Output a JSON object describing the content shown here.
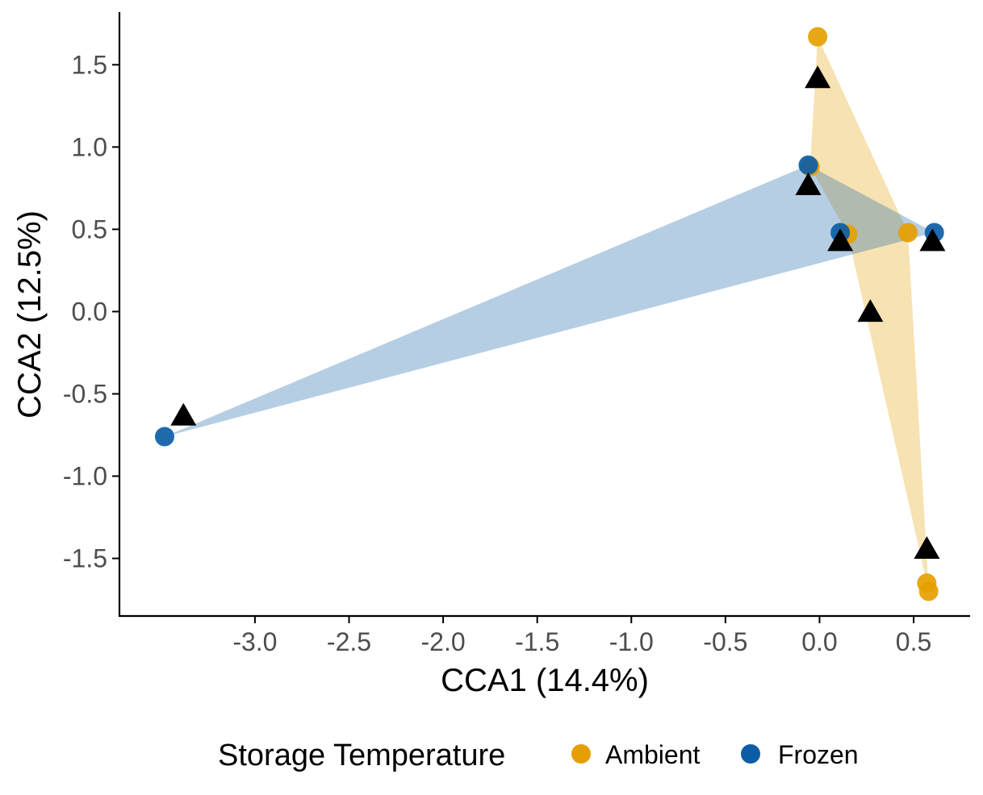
{
  "chart_data": {
    "type": "scatter",
    "xlabel": "CCA1 (14.4%)",
    "ylabel": "CCA2 (12.5%)",
    "xlim": [
      -3.72,
      0.8
    ],
    "ylim": [
      -1.85,
      1.82
    ],
    "x_ticks": [
      -3.0,
      -2.5,
      -2.0,
      -1.5,
      -1.0,
      -0.5,
      0.0,
      0.5
    ],
    "x_tick_labels": [
      "-3.0",
      "-2.5",
      "-2.0",
      "-1.5",
      "-1.0",
      "-0.5",
      "0.0",
      "0.5"
    ],
    "y_ticks": [
      -1.5,
      -1.0,
      -0.5,
      0.0,
      0.5,
      1.0,
      1.5
    ],
    "y_tick_labels": [
      "-1.5",
      "-1.0",
      "-0.5",
      "0.0",
      "0.5",
      "1.0",
      "1.5"
    ],
    "grid": false,
    "legend": {
      "title": "Storage Temperature",
      "position": "bottom",
      "entries": [
        {
          "label": "Ambient",
          "color": "#E69F00"
        },
        {
          "label": "Frozen",
          "color": "#0C5DA5"
        }
      ]
    },
    "series": [
      {
        "name": "Ambient",
        "color": "#E69F00",
        "points": [
          {
            "x": -0.01,
            "y": 1.67
          },
          {
            "x": 0.15,
            "y": 0.47
          },
          {
            "x": 0.47,
            "y": 0.48
          },
          {
            "x": 0.57,
            "y": -1.65
          },
          {
            "x": 0.58,
            "y": -1.7
          },
          {
            "x": -0.05,
            "y": 0.88
          }
        ],
        "hull_order": [
          0,
          2,
          4,
          3,
          1,
          5
        ]
      },
      {
        "name": "Frozen",
        "color": "#0C5DA5",
        "points": [
          {
            "x": -3.48,
            "y": -0.76
          },
          {
            "x": -0.06,
            "y": 0.89
          },
          {
            "x": 0.11,
            "y": 0.48
          },
          {
            "x": 0.61,
            "y": 0.48
          }
        ],
        "hull_order": [
          0,
          1,
          3
        ]
      },
      {
        "marker": "triangle",
        "color": "#000000",
        "points": [
          {
            "x": -0.01,
            "y": 1.41
          },
          {
            "x": -0.06,
            "y": 0.76
          },
          {
            "x": 0.11,
            "y": 0.42
          },
          {
            "x": 0.6,
            "y": 0.42
          },
          {
            "x": 0.27,
            "y": -0.01
          },
          {
            "x": -3.38,
            "y": -0.64
          },
          {
            "x": 0.57,
            "y": -1.45
          }
        ]
      }
    ]
  }
}
